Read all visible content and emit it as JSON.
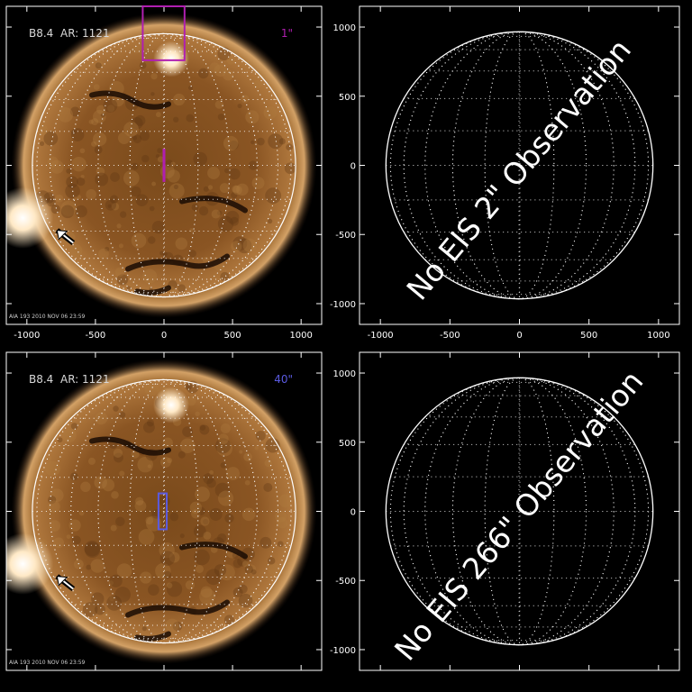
{
  "axis": {
    "ticks": [
      -1000,
      -500,
      0,
      500,
      1000
    ],
    "range": [
      -1150,
      1150
    ]
  },
  "panels": [
    {
      "id": "top-left",
      "type": "sun-image",
      "class_label": "B8.4",
      "ar_label": "AR: 1121",
      "slit_label": "1\"",
      "slit_color": "#b01fb0",
      "timestamp": "AIA 193 2010 NOV 06 23:59"
    },
    {
      "id": "top-right",
      "type": "no-observation",
      "message": "No EIS 2\" Observation"
    },
    {
      "id": "bottom-left",
      "type": "sun-image",
      "class_label": "B8.4",
      "ar_label": "AR: 1121",
      "slit_label": "40\"",
      "slit_color": "#5a5ae0",
      "timestamp": "AIA 193 2010 NOV 06 23:59"
    },
    {
      "id": "bottom-right",
      "type": "no-observation",
      "message": "No EIS 266\" Observation"
    }
  ],
  "colors": {
    "background": "#000000",
    "sun_core": "#7a4a1c",
    "sun_corona": "#d9a766",
    "axes": "#ffffff"
  }
}
